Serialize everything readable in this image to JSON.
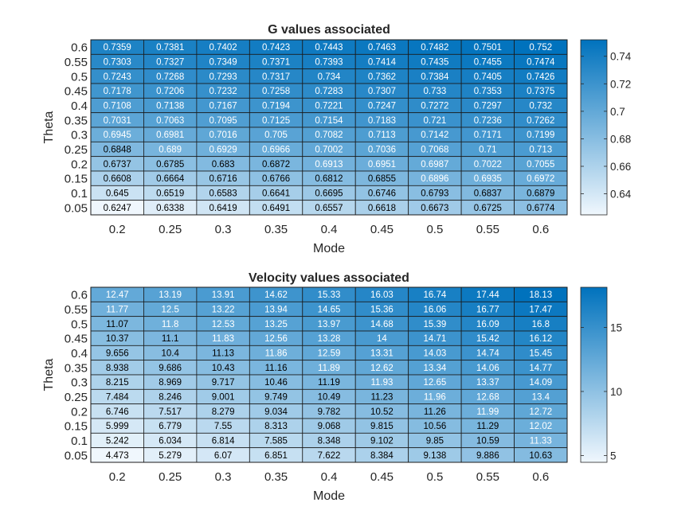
{
  "chart_data": [
    {
      "type": "heatmap",
      "title": "G values associated",
      "xlabel": "Mode",
      "ylabel": "Theta",
      "x_categories": [
        "0.2",
        "0.25",
        "0.3",
        "0.35",
        "0.4",
        "0.45",
        "0.5",
        "0.55",
        "0.6"
      ],
      "y_categories": [
        "0.6",
        "0.55",
        "0.5",
        "0.45",
        "0.4",
        "0.35",
        "0.3",
        "0.25",
        "0.2",
        "0.15",
        "0.1",
        "0.05"
      ],
      "values": [
        [
          "0.7359",
          "0.7381",
          "0.7402",
          "0.7423",
          "0.7443",
          "0.7463",
          "0.7482",
          "0.7501",
          "0.752"
        ],
        [
          "0.7303",
          "0.7327",
          "0.7349",
          "0.7371",
          "0.7393",
          "0.7414",
          "0.7435",
          "0.7455",
          "0.7474"
        ],
        [
          "0.7243",
          "0.7268",
          "0.7293",
          "0.7317",
          "0.734",
          "0.7362",
          "0.7384",
          "0.7405",
          "0.7426"
        ],
        [
          "0.7178",
          "0.7206",
          "0.7232",
          "0.7258",
          "0.7283",
          "0.7307",
          "0.733",
          "0.7353",
          "0.7375"
        ],
        [
          "0.7108",
          "0.7138",
          "0.7167",
          "0.7194",
          "0.7221",
          "0.7247",
          "0.7272",
          "0.7297",
          "0.732"
        ],
        [
          "0.7031",
          "0.7063",
          "0.7095",
          "0.7125",
          "0.7154",
          "0.7183",
          "0.721",
          "0.7236",
          "0.7262"
        ],
        [
          "0.6945",
          "0.6981",
          "0.7016",
          "0.705",
          "0.7082",
          "0.7113",
          "0.7142",
          "0.7171",
          "0.7199"
        ],
        [
          "0.6848",
          "0.689",
          "0.6929",
          "0.6966",
          "0.7002",
          "0.7036",
          "0.7068",
          "0.71",
          "0.713"
        ],
        [
          "0.6737",
          "0.6785",
          "0.683",
          "0.6872",
          "0.6913",
          "0.6951",
          "0.6987",
          "0.7022",
          "0.7055"
        ],
        [
          "0.6608",
          "0.6664",
          "0.6716",
          "0.6766",
          "0.6812",
          "0.6855",
          "0.6896",
          "0.6935",
          "0.6972"
        ],
        [
          "0.645",
          "0.6519",
          "0.6583",
          "0.6641",
          "0.6695",
          "0.6746",
          "0.6793",
          "0.6837",
          "0.6879"
        ],
        [
          "0.6247",
          "0.6338",
          "0.6419",
          "0.6491",
          "0.6557",
          "0.6618",
          "0.6673",
          "0.6725",
          "0.6774"
        ]
      ],
      "colorbar": {
        "ticks": [
          "0.64",
          "0.66",
          "0.68",
          "0.7",
          "0.72",
          "0.74"
        ],
        "range": [
          0.6247,
          0.752
        ]
      },
      "colormap": [
        "#f0f7fd",
        "#0072bd"
      ],
      "grid": true
    },
    {
      "type": "heatmap",
      "title": "Velocity values associated",
      "xlabel": "Mode",
      "ylabel": "Theta",
      "x_categories": [
        "0.2",
        "0.25",
        "0.3",
        "0.35",
        "0.4",
        "0.45",
        "0.5",
        "0.55",
        "0.6"
      ],
      "y_categories": [
        "0.6",
        "0.55",
        "0.5",
        "0.45",
        "0.4",
        "0.35",
        "0.3",
        "0.25",
        "0.2",
        "0.15",
        "0.1",
        "0.05"
      ],
      "values": [
        [
          "12.47",
          "13.19",
          "13.91",
          "14.62",
          "15.33",
          "16.03",
          "16.74",
          "17.44",
          "18.13"
        ],
        [
          "11.77",
          "12.5",
          "13.22",
          "13.94",
          "14.65",
          "15.36",
          "16.06",
          "16.77",
          "17.47"
        ],
        [
          "11.07",
          "11.8",
          "12.53",
          "13.25",
          "13.97",
          "14.68",
          "15.39",
          "16.09",
          "16.8"
        ],
        [
          "10.37",
          "11.1",
          "11.83",
          "12.56",
          "13.28",
          "14",
          "14.71",
          "15.42",
          "16.12"
        ],
        [
          "9.656",
          "10.4",
          "11.13",
          "11.86",
          "12.59",
          "13.31",
          "14.03",
          "14.74",
          "15.45"
        ],
        [
          "8.938",
          "9.686",
          "10.43",
          "11.16",
          "11.89",
          "12.62",
          "13.34",
          "14.06",
          "14.77"
        ],
        [
          "8.215",
          "8.969",
          "9.717",
          "10.46",
          "11.19",
          "11.93",
          "12.65",
          "13.37",
          "14.09"
        ],
        [
          "7.484",
          "8.246",
          "9.001",
          "9.749",
          "10.49",
          "11.23",
          "11.96",
          "12.68",
          "13.4"
        ],
        [
          "6.746",
          "7.517",
          "8.279",
          "9.034",
          "9.782",
          "10.52",
          "11.26",
          "11.99",
          "12.72"
        ],
        [
          "5.999",
          "6.779",
          "7.55",
          "8.313",
          "9.068",
          "9.815",
          "10.56",
          "11.29",
          "12.02"
        ],
        [
          "5.242",
          "6.034",
          "6.814",
          "7.585",
          "8.348",
          "9.102",
          "9.85",
          "10.59",
          "11.33"
        ],
        [
          "4.473",
          "5.279",
          "6.07",
          "6.851",
          "7.622",
          "8.384",
          "9.138",
          "9.886",
          "10.63"
        ]
      ],
      "colorbar": {
        "ticks": [
          "5",
          "10",
          "15"
        ],
        "range": [
          4.473,
          18.13
        ]
      },
      "colormap": [
        "#f0f7fd",
        "#0072bd"
      ],
      "grid": true
    }
  ]
}
